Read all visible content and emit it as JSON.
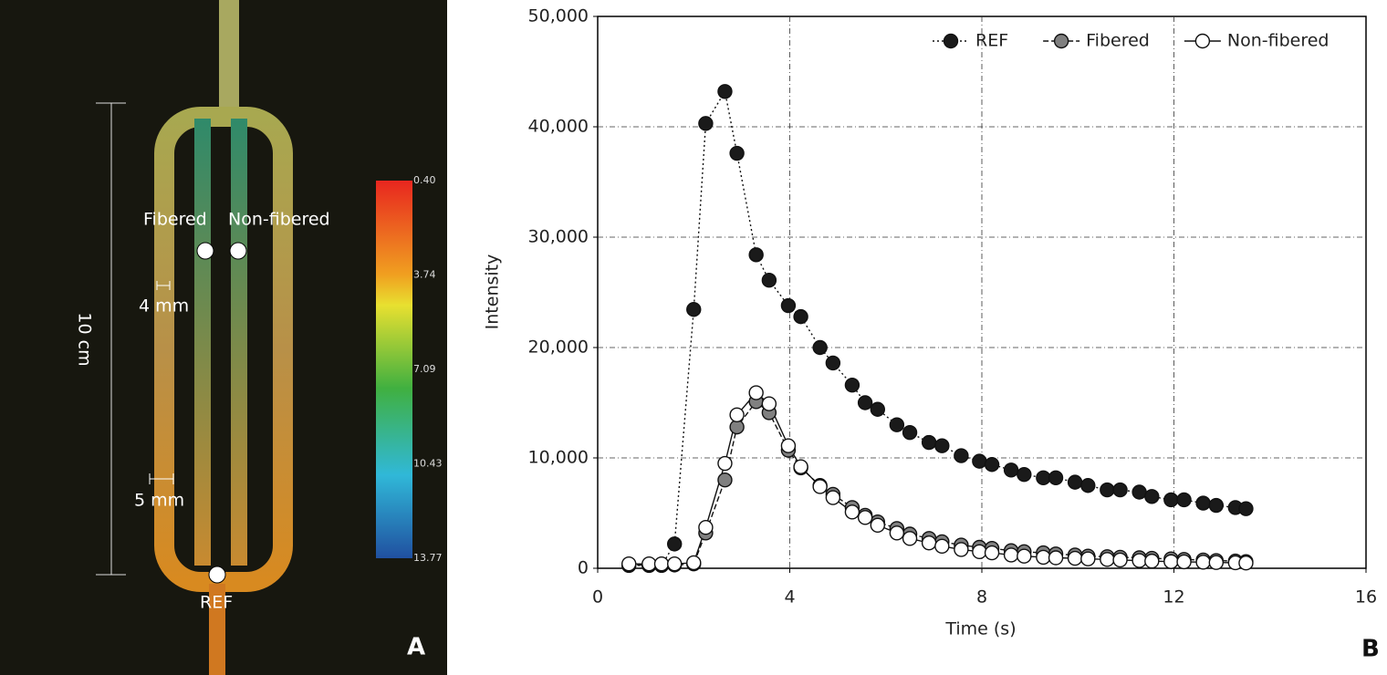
{
  "panel_a": {
    "fibered": "Fibered",
    "non_fibered": "Non-fibered",
    "width_small": "4 mm",
    "width_large": "5 mm",
    "length": "10 cm",
    "ref": "REF",
    "colorbar_ticks": [
      {
        "value": 0.4,
        "label": "0.40"
      },
      {
        "value": 3.74,
        "label": "3.74"
      },
      {
        "value": 7.09,
        "label": "7.09"
      },
      {
        "value": 10.43,
        "label": "10.43"
      },
      {
        "value": 13.77,
        "label": "13.77"
      }
    ]
  },
  "panel_labels": [
    "A",
    "B"
  ],
  "chart_data": {
    "type": "line",
    "x_label": "Time (s)",
    "y_label": "Intensity",
    "x": [
      0.65,
      1.07,
      1.33,
      1.6,
      2.0,
      2.25,
      2.65,
      2.9,
      3.3,
      3.57,
      3.97,
      4.23,
      4.63,
      4.9,
      5.3,
      5.57,
      5.83,
      6.23,
      6.5,
      6.9,
      7.17,
      7.57,
      7.95,
      8.21,
      8.61,
      8.88,
      9.28,
      9.54,
      9.94,
      10.21,
      10.61,
      10.88,
      11.28,
      11.54,
      11.94,
      12.21,
      12.61,
      12.88,
      13.28,
      13.5
    ],
    "series": [
      {
        "name": "REF",
        "color": "#1a1a1a",
        "dash": "2,3",
        "values": [
          250,
          250,
          250,
          2200,
          23450,
          40300,
          43200,
          37600,
          28400,
          26100,
          23800,
          22800,
          20000,
          18600,
          16600,
          15000,
          14400,
          13000,
          12300,
          11400,
          11100,
          10200,
          9700,
          9400,
          8900,
          8500,
          8200,
          8200,
          7800,
          7500,
          7100,
          7100,
          6900,
          6500,
          6200,
          6200,
          5900,
          5700,
          5500,
          5400
        ]
      },
      {
        "name": "Fibered",
        "color": "#808080",
        "dash": "6,3",
        "values": [
          300,
          300,
          300,
          300,
          400,
          3200,
          8000,
          12800,
          15100,
          14100,
          10700,
          9100,
          7500,
          6700,
          5500,
          4800,
          4200,
          3600,
          3100,
          2700,
          2400,
          2100,
          1900,
          1800,
          1600,
          1500,
          1400,
          1300,
          1200,
          1100,
          1050,
          1000,
          950,
          900,
          850,
          800,
          750,
          700,
          650,
          600
        ]
      },
      {
        "name": "Non-fibered",
        "color": "#ffffff",
        "dash": "none",
        "values": [
          400,
          400,
          400,
          400,
          500,
          3700,
          9500,
          13900,
          15900,
          14900,
          11100,
          9200,
          7400,
          6400,
          5100,
          4600,
          3900,
          3200,
          2700,
          2300,
          2000,
          1700,
          1500,
          1400,
          1200,
          1100,
          1000,
          950,
          900,
          850,
          800,
          750,
          700,
          650,
          600,
          580,
          550,
          520,
          500,
          480
        ]
      }
    ],
    "xlim": [
      0,
      16
    ],
    "xticks": [
      0,
      4,
      8,
      12,
      16
    ],
    "ylim": [
      0,
      50000
    ],
    "yticks": [
      0,
      {
        "value": 10000,
        "label": "10,000"
      },
      {
        "value": 20000,
        "label": "20,000"
      },
      {
        "value": 30000,
        "label": "30,000"
      },
      {
        "value": 40000,
        "label": "40,000"
      },
      {
        "value": 50000,
        "label": "50,000"
      }
    ],
    "grid": true,
    "legend": "upper right"
  }
}
